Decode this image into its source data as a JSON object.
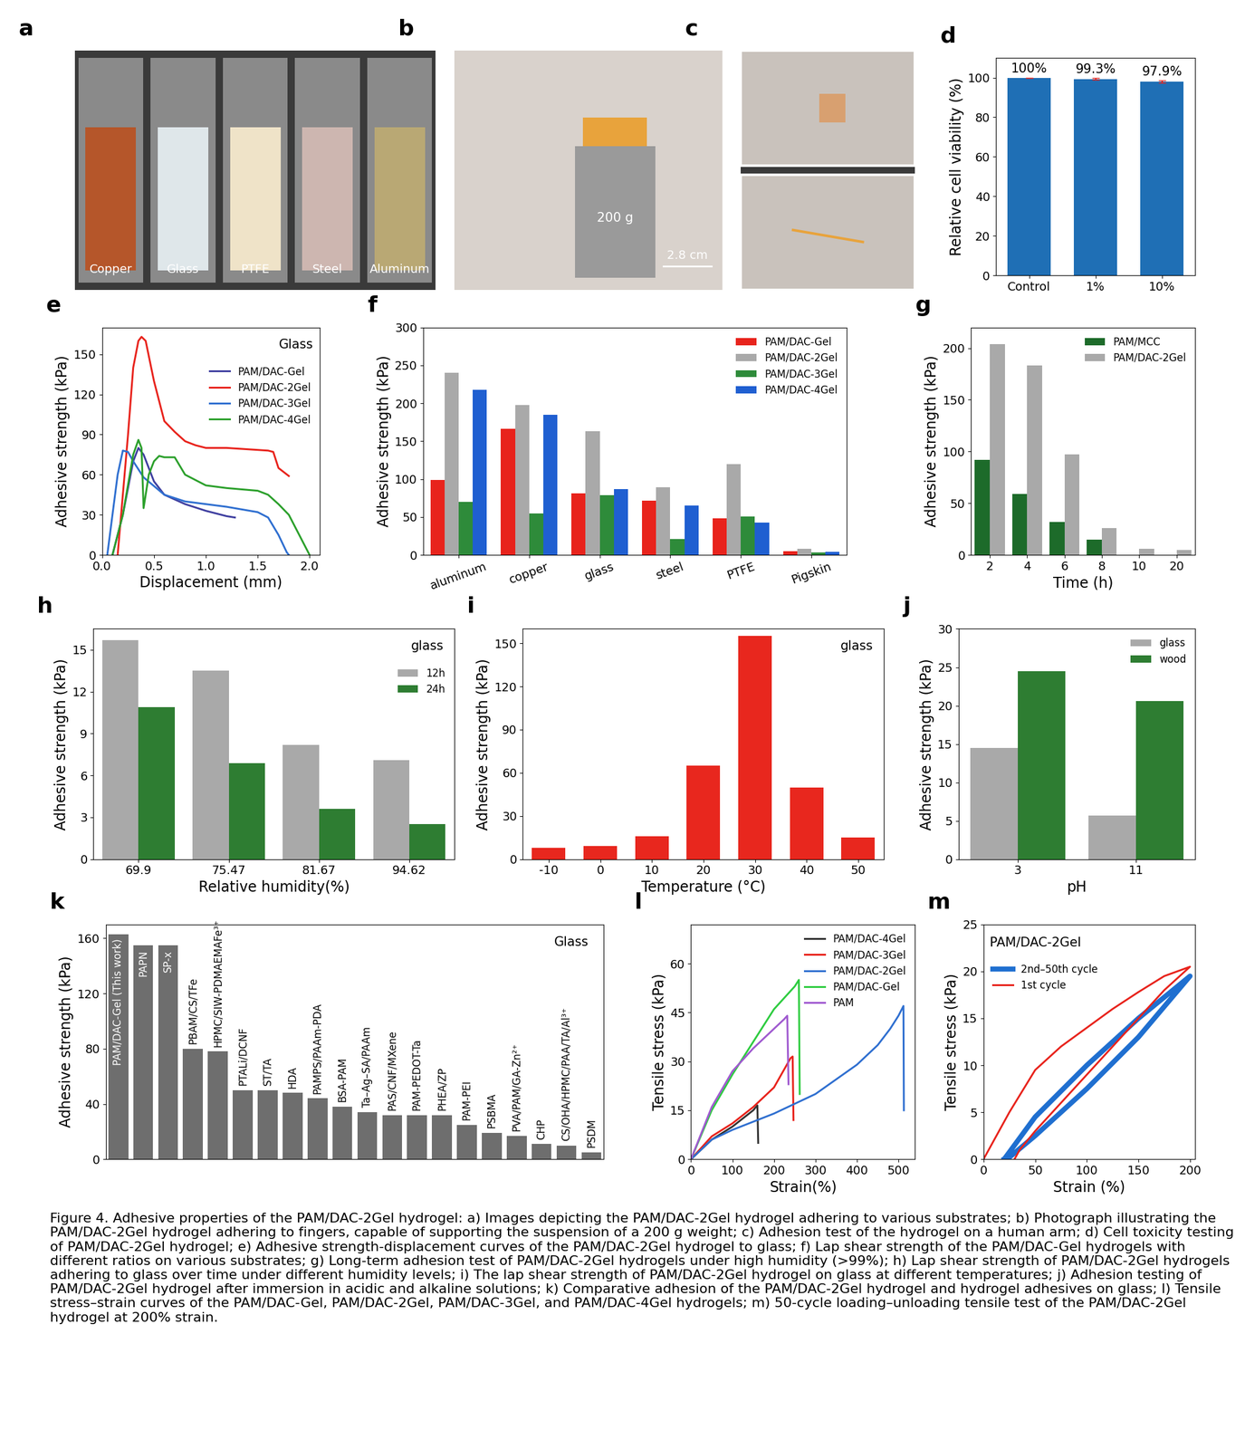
{
  "images": [
    {
      "panel": "a",
      "labels": [
        "Copper",
        "Glass",
        "PTFE",
        "Steel",
        "Aluminum"
      ]
    },
    {
      "panel": "b",
      "labels": [
        "200 g",
        "2.8 cm"
      ]
    },
    {
      "panel": "c",
      "labels": []
    }
  ],
  "chart_data": [
    {
      "panel": "d",
      "type": "bar",
      "ylabel": "Relative cell viability (%)",
      "categories": [
        "Control",
        "1%",
        "10%"
      ],
      "values": [
        100,
        99.3,
        97.9
      ],
      "errors": [
        0,
        0.5,
        0.6
      ],
      "value_labels": [
        "100%",
        "99.3%",
        "97.9%"
      ],
      "data_labels": true,
      "color": "#1f6fb5",
      "ylim": [
        0,
        110
      ],
      "yticks": [
        0,
        20,
        40,
        60,
        80,
        100
      ]
    },
    {
      "panel": "e",
      "type": "line",
      "xlabel": "Displacement (mm)",
      "ylabel": "Adhesive strength (kPa)",
      "annotation": "Glass",
      "legend": "upper right",
      "xlim": [
        0,
        2.1
      ],
      "xticks": [
        {
          "value": 0,
          "label": "0.0"
        },
        {
          "value": 0.5,
          "label": "0.5"
        },
        {
          "value": 1.0,
          "label": "1.0"
        },
        {
          "value": 1.5,
          "label": "1.5"
        },
        {
          "value": 2.0,
          "label": "2.0"
        }
      ],
      "ylim": [
        0,
        170
      ],
      "yticks": [
        0,
        30,
        60,
        90,
        120,
        150
      ],
      "series": [
        {
          "name": "PAM/DAC-Gel",
          "color": "#3f3fa0",
          "x": [
            0.1,
            0.2,
            0.3,
            0.35,
            0.4,
            0.5,
            0.6,
            0.8,
            1.0,
            1.2,
            1.28
          ],
          "values": [
            0,
            30,
            70,
            80,
            75,
            55,
            45,
            38,
            33,
            29,
            28
          ]
        },
        {
          "name": "PAM/DAC-2Gel",
          "color": "#e8231c",
          "x": [
            0.15,
            0.25,
            0.3,
            0.35,
            0.38,
            0.42,
            0.5,
            0.6,
            0.7,
            0.8,
            0.9,
            1.0,
            1.2,
            1.4,
            1.6,
            1.65,
            1.7,
            1.8
          ],
          "values": [
            0,
            90,
            140,
            160,
            163,
            160,
            130,
            100,
            92,
            85,
            82,
            80,
            80,
            79,
            78,
            77,
            65,
            59
          ]
        },
        {
          "name": "PAM/DAC-3Gel",
          "color": "#2f6fd0",
          "x": [
            0.05,
            0.15,
            0.2,
            0.25,
            0.3,
            0.4,
            0.6,
            0.8,
            1.0,
            1.2,
            1.5,
            1.6,
            1.7,
            1.78,
            1.8
          ],
          "values": [
            0,
            60,
            78,
            77,
            70,
            58,
            45,
            40,
            38,
            36,
            32,
            28,
            15,
            2,
            0
          ]
        },
        {
          "name": "PAM/DAC-4Gel",
          "color": "#2ca02c",
          "x": [
            0.1,
            0.2,
            0.3,
            0.35,
            0.38,
            0.4,
            0.45,
            0.5,
            0.55,
            0.6,
            0.7,
            0.8,
            1.0,
            1.2,
            1.5,
            1.6,
            1.7,
            1.8,
            1.9,
            2.0
          ],
          "values": [
            0,
            30,
            75,
            86,
            80,
            35,
            60,
            70,
            74,
            73,
            73,
            60,
            52,
            50,
            48,
            45,
            38,
            30,
            15,
            0
          ]
        }
      ]
    },
    {
      "panel": "f",
      "type": "bar",
      "ylabel": "Adhesive strength (kPa)",
      "legend": "upper right",
      "categories": [
        "aluminum",
        "copper",
        "glass",
        "steel",
        "PTFE",
        "Pigskin"
      ],
      "ylim": [
        0,
        300
      ],
      "yticks": [
        0,
        50,
        100,
        150,
        200,
        250,
        300
      ],
      "series": [
        {
          "name": "PAM/DAC-Gel",
          "color": "#e8231c",
          "values": [
            99,
            166,
            81,
            72,
            48,
            5
          ]
        },
        {
          "name": "PAM/DAC-2Gel",
          "color": "#a9a9a9",
          "values": [
            240,
            198,
            163,
            89,
            120,
            8
          ]
        },
        {
          "name": "PAM/DAC-3Gel",
          "color": "#2e8b3a",
          "values": [
            70,
            55,
            79,
            21,
            51,
            3
          ]
        },
        {
          "name": "PAM/DAC-4Gel",
          "color": "#1f5fd1",
          "values": [
            218,
            185,
            87,
            65,
            43,
            4
          ]
        }
      ]
    },
    {
      "panel": "g",
      "type": "bar",
      "xlabel": "Time (h)",
      "ylabel": "Adhesive strength (kPa)",
      "legend": "upper right",
      "categories": [
        "2",
        "4",
        "6",
        "8",
        "10",
        "20"
      ],
      "ylim": [
        0,
        220
      ],
      "yticks": [
        0,
        50,
        100,
        150,
        200
      ],
      "series": [
        {
          "name": "PAM/MCC",
          "color": "#1d6b2a",
          "values": [
            92,
            59,
            32,
            15,
            0,
            0
          ]
        },
        {
          "name": "PAM/DAC-2Gel",
          "color": "#a9a9a9",
          "values": [
            204,
            183,
            97,
            26,
            6,
            5
          ]
        }
      ]
    },
    {
      "panel": "h",
      "type": "bar",
      "xlabel": "Relative humidity(%)",
      "ylabel": "Adhesive strength (kPa)",
      "annotation": "glass",
      "legend": "upper right",
      "categories": [
        "69.9",
        "75.47",
        "81.67",
        "94.62"
      ],
      "ylim": [
        0,
        16.5
      ],
      "yticks": [
        0,
        3,
        6,
        9,
        12,
        15
      ],
      "series": [
        {
          "name": "12h",
          "color": "#a9a9a9",
          "values": [
            15.7,
            13.5,
            8.2,
            7.1
          ]
        },
        {
          "name": "24h",
          "color": "#2e7d32",
          "values": [
            10.9,
            6.9,
            3.6,
            2.5
          ]
        }
      ]
    },
    {
      "panel": "i",
      "type": "bar",
      "xlabel": "Temperature (°C)",
      "ylabel": "Adhesive strength (kPa)",
      "annotation": "glass",
      "color": "#e8271e",
      "categories": [
        "-10",
        "0",
        "10",
        "20",
        "30",
        "40",
        "50"
      ],
      "values": [
        8,
        9,
        16,
        65,
        155,
        50,
        15
      ],
      "ylim": [
        0,
        160
      ],
      "yticks": [
        0,
        30,
        60,
        90,
        120,
        150
      ]
    },
    {
      "panel": "j",
      "type": "bar",
      "xlabel": "pH",
      "ylabel": "Adhesive strength (kPa)",
      "legend": "upper right",
      "categories": [
        "3",
        "11"
      ],
      "ylim": [
        0,
        30
      ],
      "yticks": [
        0,
        5,
        10,
        15,
        20,
        25,
        30
      ],
      "series": [
        {
          "name": "glass",
          "color": "#a9a9a9",
          "values": [
            14.5,
            5.7
          ]
        },
        {
          "name": "wood",
          "color": "#2e7d32",
          "values": [
            24.5,
            20.6
          ]
        }
      ]
    },
    {
      "panel": "k",
      "type": "bar",
      "ylabel": "Adhesive strength (kPa)",
      "annotation": "Glass",
      "tick_labels": "y",
      "color": "#6e6e6e",
      "categories": [
        "PAM/DAC-Gel (This work)",
        "PAPN",
        "SP-x",
        "PBAM/CS/TFe",
        "HPMC/SIW-PDMAEMAFe³⁺",
        "PTALi/DCNF",
        "ST/TA",
        "HDA",
        "PAMPS/PAAm-PDA",
        "BSA-PAM",
        "Ta–Ag–SA/PAAm",
        "PAS/CNF/MXene",
        "PAM-PEDOT-Ta",
        "PHEA/ZP",
        "PAM-PEI",
        "PSBMA",
        "PVA/PAM/GA-Zn²⁺",
        "CHP",
        "CS/OHA/HPMC/PAA/TA/Al³⁺",
        "PSDM"
      ],
      "values": [
        163,
        155,
        155,
        80,
        78,
        50,
        50,
        48,
        44,
        38,
        34,
        32,
        32,
        32,
        25,
        19,
        17,
        11,
        10,
        5
      ],
      "ylim": [
        0,
        170
      ],
      "yticks": [
        0,
        40,
        80,
        120,
        160
      ]
    },
    {
      "panel": "l",
      "type": "line",
      "xlabel": "Strain(%)",
      "ylabel": "Tensile stress (kPa)",
      "legend": "upper right",
      "xlim": [
        0,
        540
      ],
      "xticks": [
        0,
        100,
        200,
        300,
        400,
        500
      ],
      "ylim": [
        0,
        72
      ],
      "yticks": [
        0,
        15,
        30,
        45,
        60
      ],
      "series": [
        {
          "name": "PAM/DAC-4Gel",
          "color": "#333333",
          "x": [
            0,
            50,
            100,
            150,
            160,
            162
          ],
          "values": [
            0,
            6,
            10,
            15,
            16.5,
            5
          ]
        },
        {
          "name": "PAM/DAC-3Gel",
          "color": "#e8231c",
          "x": [
            0,
            50,
            100,
            150,
            200,
            240,
            245,
            247
          ],
          "values": [
            0,
            7,
            11,
            16,
            22,
            31,
            31.5,
            12
          ]
        },
        {
          "name": "PAM/DAC-2Gel",
          "color": "#2f6fd0",
          "x": [
            0,
            50,
            100,
            200,
            300,
            400,
            450,
            480,
            500,
            512,
            513
          ],
          "values": [
            0,
            6,
            9,
            14,
            20,
            29,
            35,
            40,
            44,
            47,
            15
          ]
        },
        {
          "name": "PAM/DAC-Gel",
          "color": "#2ecc40",
          "x": [
            0,
            50,
            100,
            150,
            200,
            250,
            260,
            262
          ],
          "values": [
            0,
            15,
            26,
            36,
            46,
            53,
            55,
            20
          ]
        },
        {
          "name": "PAM",
          "color": "#a05ad0",
          "x": [
            0,
            50,
            100,
            150,
            200,
            225,
            232,
            235
          ],
          "values": [
            0,
            16,
            27,
            34,
            40,
            43,
            44,
            23
          ]
        }
      ]
    },
    {
      "panel": "m",
      "type": "line",
      "xlabel": "Strain (%)",
      "ylabel": "Tensile stress (kPa)",
      "annotation": "PAM/DAC-2Gel",
      "legend": "upper left",
      "xlim": [
        0,
        205
      ],
      "xticks": [
        0,
        50,
        100,
        150,
        200
      ],
      "ylim": [
        0,
        25
      ],
      "yticks": [
        0,
        5,
        10,
        15,
        20,
        25
      ],
      "series": [
        {
          "name": "2nd–50th cycle",
          "color": "#1f6fd0",
          "x": [
            20,
            50,
            100,
            150,
            200,
            150,
            100,
            50,
            25,
            20
          ],
          "values": [
            0,
            4.5,
            10,
            15,
            19.5,
            13,
            7.5,
            2.5,
            0.2,
            0
          ]
        },
        {
          "name": "1st cycle",
          "color": "#e8231c",
          "x": [
            0,
            25,
            50,
            75,
            100,
            125,
            150,
            175,
            200,
            175,
            150,
            125,
            100,
            75,
            50,
            35,
            30
          ],
          "values": [
            0,
            5,
            9.5,
            12,
            14,
            16,
            17.8,
            19.5,
            20.5,
            18,
            15,
            12,
            9,
            6,
            3,
            1,
            0
          ]
        }
      ]
    }
  ],
  "caption": "Figure 4. Adhesive properties of the PAM/DAC-2Gel hydrogel: a) Images depicting the PAM/DAC-2Gel hydrogel adhering to various substrates; b) Photograph illustrating the PAM/DAC-2Gel hydrogel adhering to fingers, capable of supporting the suspension of a 200 g weight; c) Adhesion test of the hydrogel on a human arm; d) Cell toxicity testing of PAM/DAC-2Gel hydrogel; e) Adhesive strength-displacement curves of the PAM/DAC-2Gel hydrogel to glass; f) Lap shear strength of the PAM/DAC-Gel hydrogels with different ratios on various substrates; g) Long-term adhesion test of PAM/DAC-2Gel hydrogels under high humidity (>99%); h) Lap shear strength of PAM/DAC-2Gel hydrogels adhering to glass over time under different humidity levels; i) The lap shear strength of PAM/DAC-2Gel hydrogel on glass at different temperatures; j) Adhesion testing of PAM/DAC-2Gel hydrogel after immersion in acidic and alkaline solutions; k) Comparative adhesion of the PAM/DAC-2Gel hydrogel and hydrogel adhesives on glass; l) Tensile stress–strain curves of the PAM/DAC-Gel, PAM/DAC-2Gel, PAM/DAC-3Gel, and PAM/DAC-4Gel hydrogels; m) 50-cycle loading–unloading tensile test of the PAM/DAC-2Gel hydrogel at 200% strain."
}
